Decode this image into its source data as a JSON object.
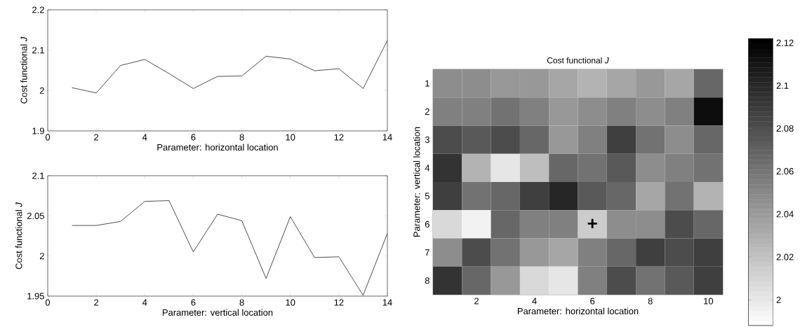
{
  "chart_data": [
    {
      "type": "line",
      "x": [
        1,
        2,
        3,
        4,
        5,
        6,
        7,
        8,
        9,
        10,
        11,
        12,
        13,
        14
      ],
      "values": [
        2.007,
        1.994,
        2.062,
        2.077,
        2.042,
        2.005,
        2.035,
        2.036,
        2.085,
        2.078,
        2.049,
        2.054,
        2.005,
        2.124
      ],
      "color": "#000000",
      "xlim": [
        0,
        14
      ],
      "xticks": [
        0,
        2,
        4,
        6,
        8,
        10,
        12,
        14
      ],
      "ylim": [
        1.9,
        2.2
      ],
      "yticks": [
        1.9,
        2,
        2.1,
        2.2
      ],
      "xlabel": "Parameter: horizontal location",
      "ylabel": "Cost functional  *J*"
    },
    {
      "type": "line",
      "x": [
        1,
        2,
        3,
        4,
        5,
        6,
        7,
        8,
        9,
        10,
        11,
        12,
        13,
        14
      ],
      "values": [
        2.038,
        2.038,
        2.043,
        2.068,
        2.069,
        2.005,
        2.052,
        2.044,
        1.972,
        2.049,
        1.998,
        1.999,
        1.951,
        2.028
      ],
      "color": "#000000",
      "xlim": [
        0,
        14
      ],
      "xticks": [
        0,
        2,
        4,
        6,
        8,
        10,
        12,
        14
      ],
      "ylim": [
        1.95,
        2.1
      ],
      "yticks": [
        1.95,
        2,
        2.05,
        2.1
      ],
      "xlabel": "Parameter: vertical location",
      "ylabel": "Cost functional  *J*"
    },
    {
      "type": "heatmap",
      "title": "Cost functional  *J*",
      "xlabel": "Parameter: horizontal location",
      "ylabel": "Parameter: vertical location",
      "categories": [
        null,
        "2",
        null,
        "4",
        null,
        "6",
        null,
        "8",
        null,
        "10"
      ],
      "y_categories": [
        "1",
        "2",
        "3",
        "4",
        "5",
        "6",
        "7",
        "8"
      ],
      "cells": [
        [
          2.048,
          2.048,
          2.042,
          2.042,
          2.035,
          2.028,
          2.035,
          2.042,
          2.035,
          2.068
        ],
        [
          2.055,
          2.055,
          2.062,
          2.055,
          2.042,
          2.048,
          2.055,
          2.048,
          2.055,
          2.115
        ],
        [
          2.082,
          2.075,
          2.082,
          2.068,
          2.042,
          2.055,
          2.089,
          2.062,
          2.048,
          2.068
        ],
        [
          2.095,
          2.028,
          2.001,
          2.022,
          2.068,
          2.062,
          2.075,
          2.048,
          2.055,
          2.062
        ],
        [
          2.089,
          2.062,
          2.068,
          2.089,
          2.102,
          2.075,
          2.068,
          2.035,
          2.062,
          2.028
        ],
        [
          2.008,
          1.995,
          2.068,
          2.055,
          2.055,
          2.015,
          2.048,
          2.048,
          2.082,
          2.068
        ],
        [
          2.048,
          2.082,
          2.062,
          2.042,
          2.035,
          2.055,
          2.068,
          2.089,
          2.082,
          2.089
        ],
        [
          2.095,
          2.068,
          2.042,
          2.008,
          2.001,
          2.055,
          2.082,
          2.062,
          2.075,
          2.089
        ]
      ],
      "clim": [
        1.988,
        2.122
      ],
      "cticks": [
        2,
        2.02,
        2.04,
        2.06,
        2.08,
        2.1,
        2.12
      ],
      "annotations": [
        "+"
      ]
    }
  ]
}
